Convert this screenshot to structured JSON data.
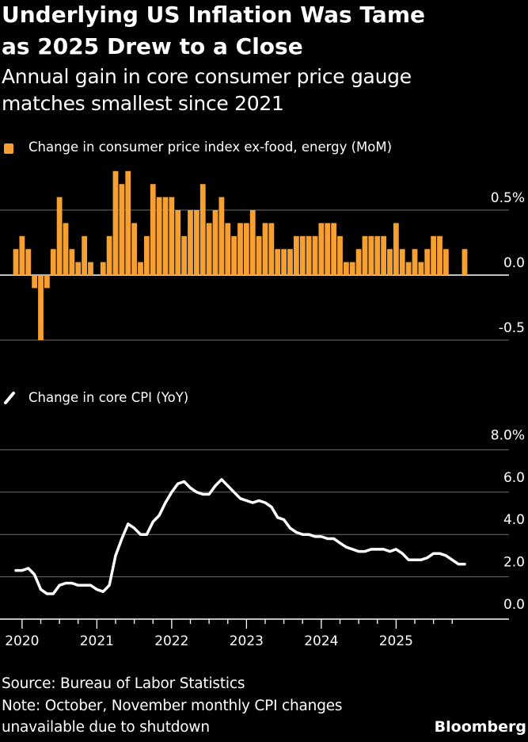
{
  "title": [
    "Underlying US Inflation Was Tame",
    "as 2025 Drew to a Close"
  ],
  "subtitle": [
    "Annual gain in core consumer price gauge",
    "matches smallest since 2021"
  ],
  "footer": {
    "source": "Source: Bureau of Labor Statistics",
    "note_line1": "Note: October, November monthly CPI changes",
    "note_line2": "unavailable due to shutdown",
    "brand": "Bloomberg"
  },
  "colors": {
    "bar": "#f7a032",
    "line": "#ffffff",
    "grid": "#6e6e6e",
    "background": "#000000"
  },
  "chart_data": [
    {
      "type": "bar",
      "legend": "Change in consumer price index ex-food, energy (MoM)",
      "x_start": "2019-12",
      "x_end": "2025-12",
      "unit": "%",
      "ylim": [
        -0.5,
        0.8
      ],
      "yticks": [
        {
          "v": 0.5,
          "label": "0.5%"
        },
        {
          "v": 0.0,
          "label": "0.0"
        },
        {
          "v": -0.5,
          "label": "-0.5"
        }
      ],
      "values": [
        0.2,
        0.3,
        0.2,
        -0.1,
        -0.5,
        -0.1,
        0.2,
        0.6,
        0.4,
        0.2,
        0.1,
        0.3,
        0.1,
        0.0,
        0.1,
        0.3,
        0.8,
        0.7,
        0.8,
        0.4,
        0.1,
        0.3,
        0.7,
        0.6,
        0.6,
        0.6,
        0.5,
        0.3,
        0.5,
        0.5,
        0.7,
        0.4,
        0.5,
        0.6,
        0.4,
        0.3,
        0.4,
        0.4,
        0.5,
        0.3,
        0.4,
        0.4,
        0.2,
        0.2,
        0.2,
        0.3,
        0.3,
        0.3,
        0.3,
        0.4,
        0.4,
        0.4,
        0.3,
        0.1,
        0.1,
        0.2,
        0.3,
        0.3,
        0.3,
        0.3,
        0.2,
        0.4,
        0.2,
        0.1,
        0.2,
        0.1,
        0.2,
        0.3,
        0.3,
        0.2,
        null,
        null,
        0.2
      ],
      "grid": true
    },
    {
      "type": "line",
      "legend": "Change in core CPI (YoY)",
      "x_start": "2019-12",
      "x_end": "2025-12",
      "unit": "%",
      "ylim": [
        0,
        8
      ],
      "yticks": [
        {
          "v": 8,
          "label": "8.0%"
        },
        {
          "v": 6,
          "label": "6.0"
        },
        {
          "v": 4,
          "label": "4.0"
        },
        {
          "v": 2,
          "label": "2.0"
        },
        {
          "v": 0,
          "label": "0.0"
        }
      ],
      "xticks": [
        "2020",
        "2021",
        "2022",
        "2023",
        "2024",
        "2025"
      ],
      "values": [
        2.3,
        2.3,
        2.4,
        2.1,
        1.4,
        1.2,
        1.2,
        1.6,
        1.7,
        1.7,
        1.6,
        1.6,
        1.6,
        1.4,
        1.3,
        1.6,
        3.0,
        3.8,
        4.5,
        4.3,
        4.0,
        4.0,
        4.6,
        4.9,
        5.5,
        6.0,
        6.4,
        6.5,
        6.2,
        6.0,
        5.9,
        5.9,
        6.3,
        6.6,
        6.3,
        6.0,
        5.7,
        5.6,
        5.5,
        5.6,
        5.5,
        5.3,
        4.8,
        4.7,
        4.3,
        4.1,
        4.0,
        4.0,
        3.9,
        3.9,
        3.8,
        3.8,
        3.6,
        3.4,
        3.3,
        3.2,
        3.2,
        3.3,
        3.3,
        3.3,
        3.2,
        3.3,
        3.1,
        2.8,
        2.8,
        2.8,
        2.9,
        3.1,
        3.1,
        3.0,
        null,
        2.6,
        2.6
      ],
      "grid": true
    }
  ]
}
